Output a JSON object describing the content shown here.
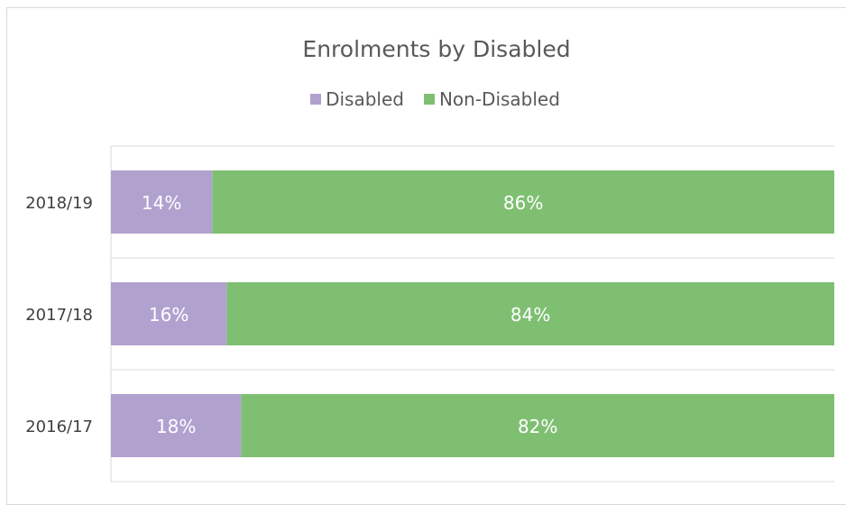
{
  "chart_data": {
    "type": "bar",
    "orientation": "horizontal",
    "stacked": true,
    "percent": true,
    "title": "Enrolments by Disabled",
    "categories": [
      "2018/19",
      "2017/18",
      "2016/17"
    ],
    "series": [
      {
        "name": "Disabled",
        "values": [
          14,
          16,
          18
        ],
        "labels": [
          "14%",
          "16%",
          "18%"
        ],
        "color": "#b1a1cf"
      },
      {
        "name": "Non-Disabled",
        "values": [
          86,
          84,
          82
        ],
        "labels": [
          "86%",
          "84%",
          "82%"
        ],
        "color": "#7fbf72"
      }
    ],
    "xlim": [
      0,
      100
    ],
    "grid": true,
    "legend_position": "top"
  }
}
